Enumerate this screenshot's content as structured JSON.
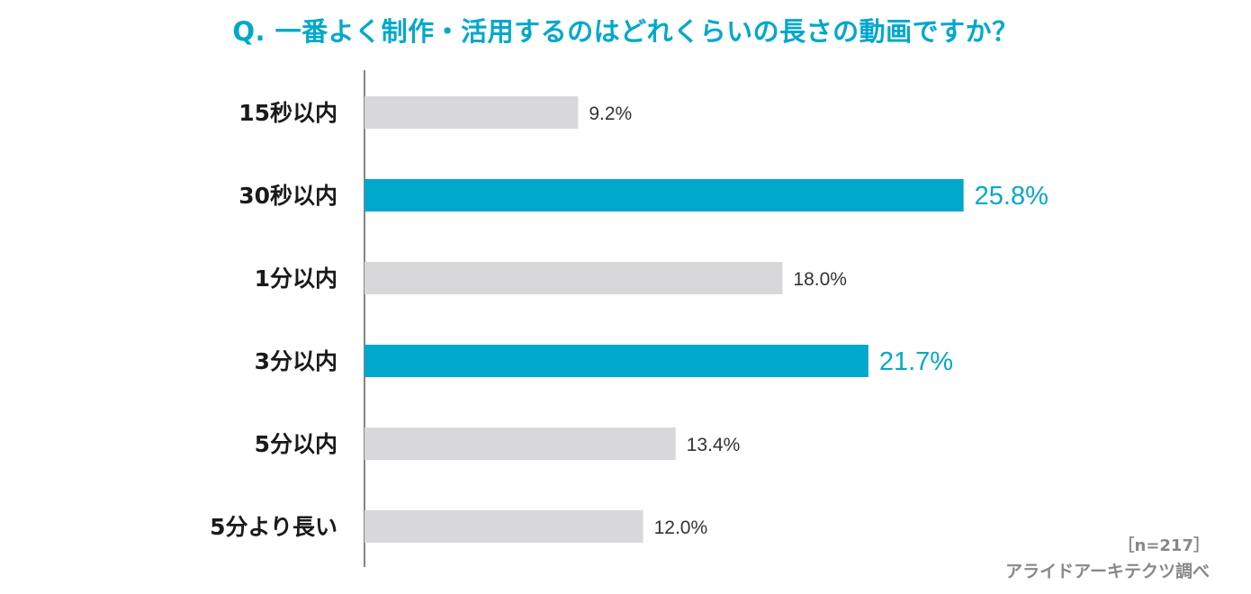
{
  "title": "Q. 一番よく制作・活用するのはどれくらいの長さの動画ですか？",
  "sample_size": "［n=217］",
  "source": "アライドアーキテクツ調べ",
  "colors": {
    "highlight": "#00a8cc",
    "default": "#d8d8da",
    "axis": "#333333"
  },
  "chart_data": {
    "type": "bar",
    "orientation": "horizontal",
    "categories": [
      "15秒以内",
      "30秒以内",
      "1分以内",
      "3分以内",
      "5分以内",
      "5分より長い"
    ],
    "values": [
      9.2,
      25.8,
      18.0,
      21.7,
      13.4,
      12.0
    ],
    "value_labels": [
      "9.2%",
      "25.8%",
      "18.0%",
      "21.7%",
      "13.4%",
      "12.0%"
    ],
    "highlighted": [
      false,
      true,
      false,
      true,
      false,
      false
    ],
    "xlim": [
      0,
      30
    ],
    "grid": false
  }
}
